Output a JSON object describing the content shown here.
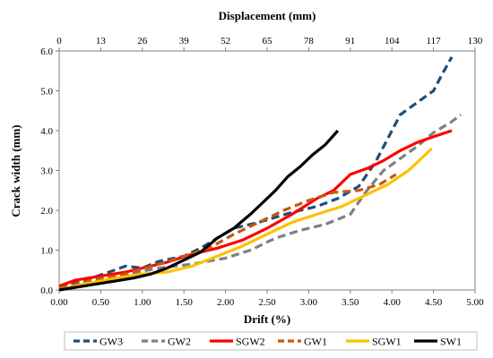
{
  "chart_data": {
    "type": "line",
    "xlabel": "Drift (%)",
    "ylabel": "Crack width (mm)",
    "x2label": "Displacement (mm)",
    "xlim": [
      0,
      5
    ],
    "ylim": [
      0,
      6
    ],
    "x_ticks": [
      "0.00",
      "0.50",
      "1.00",
      "1.50",
      "2.00",
      "2.50",
      "3.00",
      "3.50",
      "4.00",
      "4.50",
      "5.00"
    ],
    "x2_ticks": [
      "0",
      "13",
      "26",
      "39",
      "52",
      "65",
      "78",
      "91",
      "104",
      "117",
      "130"
    ],
    "y_ticks": [
      "0.0",
      "1.0",
      "2.0",
      "3.0",
      "4.0",
      "5.0",
      "6.0"
    ],
    "grid": false,
    "legend_position": "bottom",
    "series": [
      {
        "name": "GW3",
        "color": "#1F4E79",
        "dash": "dash",
        "points": [
          [
            0.0,
            0.1
          ],
          [
            0.25,
            0.2
          ],
          [
            0.6,
            0.45
          ],
          [
            0.8,
            0.6
          ],
          [
            1.0,
            0.55
          ],
          [
            1.2,
            0.72
          ],
          [
            1.5,
            0.85
          ],
          [
            1.7,
            1.05
          ],
          [
            1.9,
            1.3
          ],
          [
            2.1,
            1.55
          ],
          [
            2.4,
            1.7
          ],
          [
            2.8,
            1.95
          ],
          [
            3.1,
            2.1
          ],
          [
            3.35,
            2.3
          ],
          [
            3.6,
            2.6
          ],
          [
            3.8,
            3.2
          ],
          [
            3.95,
            3.8
          ],
          [
            4.1,
            4.4
          ],
          [
            4.3,
            4.7
          ],
          [
            4.5,
            5.0
          ],
          [
            4.6,
            5.4
          ],
          [
            4.72,
            5.85
          ]
        ]
      },
      {
        "name": "GW2",
        "color": "#808080",
        "dash": "dash",
        "points": [
          [
            0.0,
            0.0
          ],
          [
            0.3,
            0.15
          ],
          [
            0.7,
            0.35
          ],
          [
            1.2,
            0.55
          ],
          [
            1.6,
            0.65
          ],
          [
            2.0,
            0.8
          ],
          [
            2.3,
            1.0
          ],
          [
            2.6,
            1.3
          ],
          [
            2.9,
            1.5
          ],
          [
            3.2,
            1.65
          ],
          [
            3.5,
            1.9
          ],
          [
            3.7,
            2.5
          ],
          [
            3.9,
            3.0
          ],
          [
            4.1,
            3.3
          ],
          [
            4.3,
            3.6
          ],
          [
            4.5,
            3.95
          ],
          [
            4.7,
            4.2
          ],
          [
            4.83,
            4.4
          ]
        ]
      },
      {
        "name": "SGW2",
        "color": "#FF0000",
        "dash": "solid",
        "points": [
          [
            0.0,
            0.1
          ],
          [
            0.2,
            0.25
          ],
          [
            0.5,
            0.35
          ],
          [
            0.8,
            0.45
          ],
          [
            1.0,
            0.55
          ],
          [
            1.3,
            0.7
          ],
          [
            1.6,
            0.9
          ],
          [
            1.9,
            1.05
          ],
          [
            2.2,
            1.25
          ],
          [
            2.5,
            1.55
          ],
          [
            2.8,
            1.9
          ],
          [
            3.1,
            2.3
          ],
          [
            3.3,
            2.5
          ],
          [
            3.5,
            2.9
          ],
          [
            3.7,
            3.05
          ],
          [
            3.9,
            3.25
          ],
          [
            4.1,
            3.5
          ],
          [
            4.3,
            3.7
          ],
          [
            4.5,
            3.85
          ],
          [
            4.72,
            4.0
          ]
        ]
      },
      {
        "name": "GW1",
        "color": "#C55A11",
        "dash": "dash",
        "points": [
          [
            0.0,
            0.05
          ],
          [
            0.4,
            0.25
          ],
          [
            0.8,
            0.4
          ],
          [
            1.2,
            0.65
          ],
          [
            1.5,
            0.85
          ],
          [
            1.8,
            1.05
          ],
          [
            2.1,
            1.4
          ],
          [
            2.4,
            1.7
          ],
          [
            2.7,
            2.0
          ],
          [
            3.0,
            2.25
          ],
          [
            3.3,
            2.45
          ],
          [
            3.6,
            2.5
          ],
          [
            3.85,
            2.65
          ],
          [
            4.05,
            2.9
          ]
        ]
      },
      {
        "name": "SGW1",
        "color": "#FFC000",
        "dash": "solid",
        "points": [
          [
            0.0,
            0.0
          ],
          [
            0.3,
            0.15
          ],
          [
            0.7,
            0.3
          ],
          [
            1.0,
            0.4
          ],
          [
            1.3,
            0.45
          ],
          [
            1.6,
            0.6
          ],
          [
            1.9,
            0.85
          ],
          [
            2.2,
            1.1
          ],
          [
            2.5,
            1.4
          ],
          [
            2.8,
            1.7
          ],
          [
            3.1,
            1.9
          ],
          [
            3.4,
            2.1
          ],
          [
            3.7,
            2.4
          ],
          [
            3.95,
            2.65
          ],
          [
            4.2,
            3.0
          ],
          [
            4.48,
            3.55
          ]
        ]
      },
      {
        "name": "SW1",
        "color": "#000000",
        "dash": "solid",
        "points": [
          [
            0.0,
            0.0
          ],
          [
            0.3,
            0.1
          ],
          [
            0.6,
            0.2
          ],
          [
            0.9,
            0.3
          ],
          [
            1.1,
            0.4
          ],
          [
            1.3,
            0.55
          ],
          [
            1.5,
            0.75
          ],
          [
            1.7,
            0.95
          ],
          [
            1.9,
            1.3
          ],
          [
            2.1,
            1.55
          ],
          [
            2.3,
            1.9
          ],
          [
            2.45,
            2.2
          ],
          [
            2.6,
            2.5
          ],
          [
            2.75,
            2.85
          ],
          [
            2.9,
            3.1
          ],
          [
            3.05,
            3.4
          ],
          [
            3.2,
            3.65
          ],
          [
            3.35,
            4.0
          ]
        ]
      }
    ]
  }
}
